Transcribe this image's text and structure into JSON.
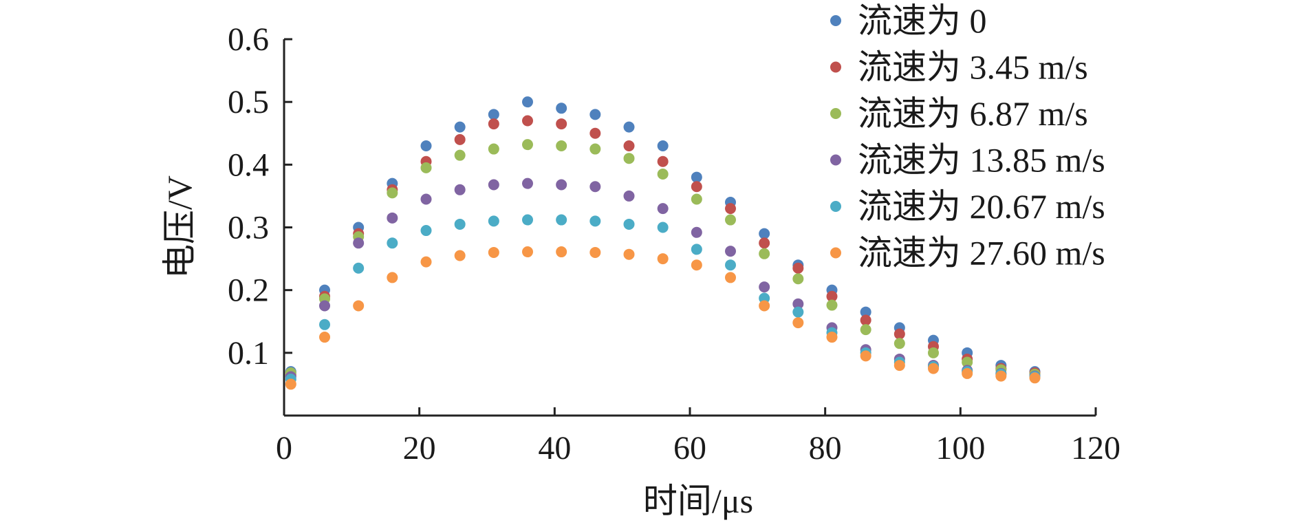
{
  "chart_data": {
    "type": "scatter",
    "title": "",
    "xlabel": "时间/μs",
    "ylabel": "电压/V",
    "xlim": [
      0,
      120
    ],
    "ylim": [
      0,
      0.6
    ],
    "xticks": [
      "0",
      "20",
      "40",
      "60",
      "80",
      "100",
      "120"
    ],
    "yticks": [
      "0.1",
      "0.2",
      "0.3",
      "0.4",
      "0.5",
      "0.6"
    ],
    "x": [
      1,
      6,
      11,
      16,
      21,
      26,
      31,
      36,
      41,
      46,
      51,
      56,
      61,
      66,
      71,
      76,
      81,
      86,
      91,
      96,
      101,
      106,
      111
    ],
    "grid": false,
    "legend_position": "top-right",
    "series": [
      {
        "name": "流速为 0",
        "color": "#4f81bd",
        "values": [
          0.07,
          0.2,
          0.3,
          0.37,
          0.43,
          0.46,
          0.48,
          0.5,
          0.49,
          0.48,
          0.46,
          0.43,
          0.38,
          0.34,
          0.29,
          0.24,
          0.2,
          0.165,
          0.14,
          0.12,
          0.1,
          0.08,
          0.07
        ]
      },
      {
        "name": "流速为 3.45 m/s",
        "color": "#c0504d",
        "values": [
          0.065,
          0.19,
          0.29,
          0.36,
          0.405,
          0.44,
          0.465,
          0.47,
          0.465,
          0.45,
          0.43,
          0.405,
          0.365,
          0.33,
          0.275,
          0.235,
          0.19,
          0.152,
          0.13,
          0.11,
          0.09,
          0.075,
          0.068
        ]
      },
      {
        "name": "流速为 6.87 m/s",
        "color": "#9bbb59",
        "values": [
          0.068,
          0.186,
          0.285,
          0.355,
          0.395,
          0.415,
          0.425,
          0.432,
          0.43,
          0.425,
          0.41,
          0.385,
          0.345,
          0.312,
          0.258,
          0.218,
          0.176,
          0.137,
          0.115,
          0.1,
          0.085,
          0.073,
          0.066
        ]
      },
      {
        "name": "流速为 13.85 m/s",
        "color": "#8064a2",
        "values": [
          0.062,
          0.175,
          0.275,
          0.315,
          0.345,
          0.36,
          0.368,
          0.37,
          0.368,
          0.365,
          0.35,
          0.33,
          0.292,
          0.262,
          0.205,
          0.178,
          0.14,
          0.105,
          0.09,
          0.08,
          0.072,
          0.067,
          0.063
        ]
      },
      {
        "name": "流速为 20.67 m/s",
        "color": "#4bacc6",
        "values": [
          0.058,
          0.145,
          0.235,
          0.275,
          0.295,
          0.305,
          0.31,
          0.312,
          0.312,
          0.31,
          0.305,
          0.3,
          0.265,
          0.24,
          0.187,
          0.165,
          0.132,
          0.1,
          0.085,
          0.078,
          0.07,
          0.066,
          0.062
        ]
      },
      {
        "name": "流速为 27.60 m/s",
        "color": "#f79646",
        "values": [
          0.05,
          0.125,
          0.175,
          0.22,
          0.245,
          0.255,
          0.26,
          0.261,
          0.261,
          0.26,
          0.257,
          0.25,
          0.24,
          0.22,
          0.175,
          0.148,
          0.125,
          0.095,
          0.08,
          0.075,
          0.067,
          0.063,
          0.06
        ]
      }
    ]
  }
}
